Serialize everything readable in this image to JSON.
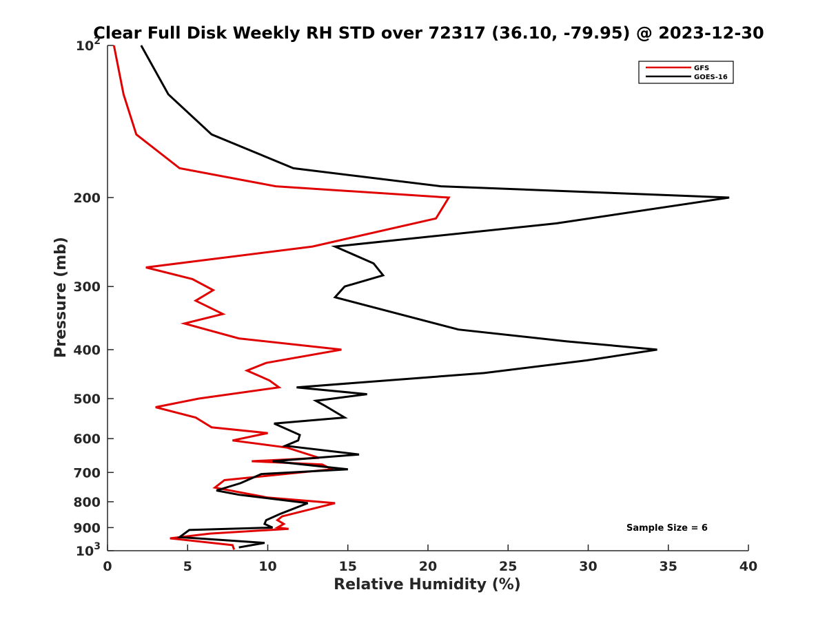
{
  "chart_data": {
    "type": "line",
    "title": "Clear Full Disk Weekly RH STD over 72317 (36.10, -79.95) @ 2023-12-30",
    "xlabel": "Relative Humidity (%)",
    "ylabel": "Pressure (mb)",
    "xlim": [
      0,
      40
    ],
    "ylim": [
      100,
      1000
    ],
    "y_scale": "log",
    "y_reversed": true,
    "x_ticks": [
      "0",
      "5",
      "10",
      "15",
      "20",
      "25",
      "30",
      "35",
      "40"
    ],
    "y_ticks": [
      {
        "value": 100,
        "label": "10",
        "sup": "2"
      },
      {
        "value": 200,
        "label": "200",
        "sup": ""
      },
      {
        "value": 300,
        "label": "300",
        "sup": ""
      },
      {
        "value": 400,
        "label": "400",
        "sup": ""
      },
      {
        "value": 500,
        "label": "500",
        "sup": ""
      },
      {
        "value": 600,
        "label": "600",
        "sup": ""
      },
      {
        "value": 700,
        "label": "700",
        "sup": ""
      },
      {
        "value": 800,
        "label": "800",
        "sup": ""
      },
      {
        "value": 900,
        "label": "900",
        "sup": ""
      },
      {
        "value": 1000,
        "label": "10",
        "sup": "3"
      }
    ],
    "legend_position": "top-right",
    "annotation": "Sample Size = 6",
    "series": [
      {
        "name": "GFS",
        "color": "#e00000",
        "points": [
          [
            0.4,
            100
          ],
          [
            1.0,
            125
          ],
          [
            1.8,
            150
          ],
          [
            4.5,
            175
          ],
          [
            10.5,
            190
          ],
          [
            21.3,
            200
          ],
          [
            20.5,
            220
          ],
          [
            12.8,
            250
          ],
          [
            2.4,
            275
          ],
          [
            5.3,
            290
          ],
          [
            6.6,
            305
          ],
          [
            5.5,
            320
          ],
          [
            7.2,
            340
          ],
          [
            4.8,
            355
          ],
          [
            8.2,
            380
          ],
          [
            14.6,
            400
          ],
          [
            9.9,
            425
          ],
          [
            8.7,
            440
          ],
          [
            10.1,
            460
          ],
          [
            10.7,
            475
          ],
          [
            5.7,
            500
          ],
          [
            3.0,
            520
          ],
          [
            5.5,
            545
          ],
          [
            6.5,
            570
          ],
          [
            10.0,
            585
          ],
          [
            7.8,
            605
          ],
          [
            11.2,
            625
          ],
          [
            13.2,
            655
          ],
          [
            9.0,
            665
          ],
          [
            13.4,
            675
          ],
          [
            14.0,
            690
          ],
          [
            7.3,
            725
          ],
          [
            6.7,
            750
          ],
          [
            10.0,
            785
          ],
          [
            14.2,
            805
          ],
          [
            10.9,
            855
          ],
          [
            10.6,
            870
          ],
          [
            11.0,
            885
          ],
          [
            10.6,
            900
          ],
          [
            11.3,
            905
          ],
          [
            6.4,
            925
          ],
          [
            3.9,
            945
          ],
          [
            7.8,
            975
          ],
          [
            7.9,
            995
          ]
        ]
      },
      {
        "name": "GOES-16",
        "color": "#000000",
        "points": [
          [
            2.1,
            100
          ],
          [
            3.8,
            125
          ],
          [
            6.5,
            150
          ],
          [
            11.6,
            175
          ],
          [
            20.8,
            190
          ],
          [
            38.8,
            200
          ],
          [
            28.0,
            225
          ],
          [
            14.2,
            250
          ],
          [
            16.6,
            270
          ],
          [
            17.2,
            285
          ],
          [
            14.8,
            300
          ],
          [
            14.2,
            315
          ],
          [
            21.9,
            365
          ],
          [
            28.6,
            385
          ],
          [
            34.3,
            400
          ],
          [
            29.9,
            420
          ],
          [
            23.5,
            445
          ],
          [
            11.8,
            475
          ],
          [
            16.2,
            490
          ],
          [
            13.0,
            505
          ],
          [
            13.5,
            515
          ],
          [
            14.8,
            545
          ],
          [
            10.4,
            560
          ],
          [
            12.0,
            590
          ],
          [
            11.9,
            605
          ],
          [
            11.1,
            620
          ],
          [
            15.7,
            645
          ],
          [
            10.3,
            665
          ],
          [
            15.0,
            690
          ],
          [
            9.6,
            705
          ],
          [
            8.3,
            735
          ],
          [
            6.8,
            760
          ],
          [
            8.2,
            775
          ],
          [
            12.5,
            805
          ],
          [
            10.8,
            845
          ],
          [
            9.9,
            870
          ],
          [
            9.8,
            885
          ],
          [
            10.3,
            900
          ],
          [
            5.1,
            910
          ],
          [
            4.5,
            940
          ],
          [
            9.8,
            965
          ],
          [
            8.2,
            985
          ]
        ]
      }
    ]
  }
}
